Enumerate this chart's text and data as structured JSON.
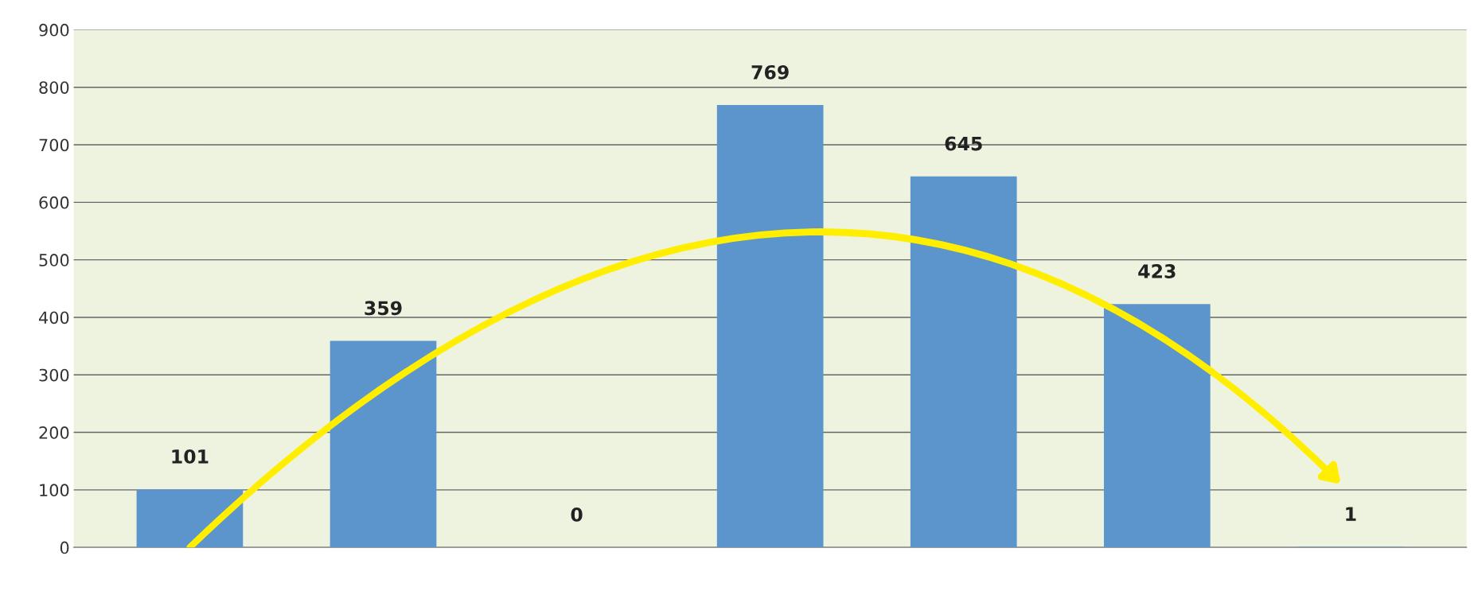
{
  "chart_data": {
    "type": "bar",
    "categories": [
      null,
      null,
      null,
      null,
      null,
      null,
      null
    ],
    "values": [
      101,
      359,
      0,
      769,
      645,
      423,
      1
    ],
    "color": "#5b95cc",
    "ylim": [
      0,
      900
    ],
    "yticks": [
      0,
      100,
      200,
      300,
      400,
      500,
      600,
      700,
      800,
      900
    ],
    "grid": "y",
    "data_labels": true
  }
}
